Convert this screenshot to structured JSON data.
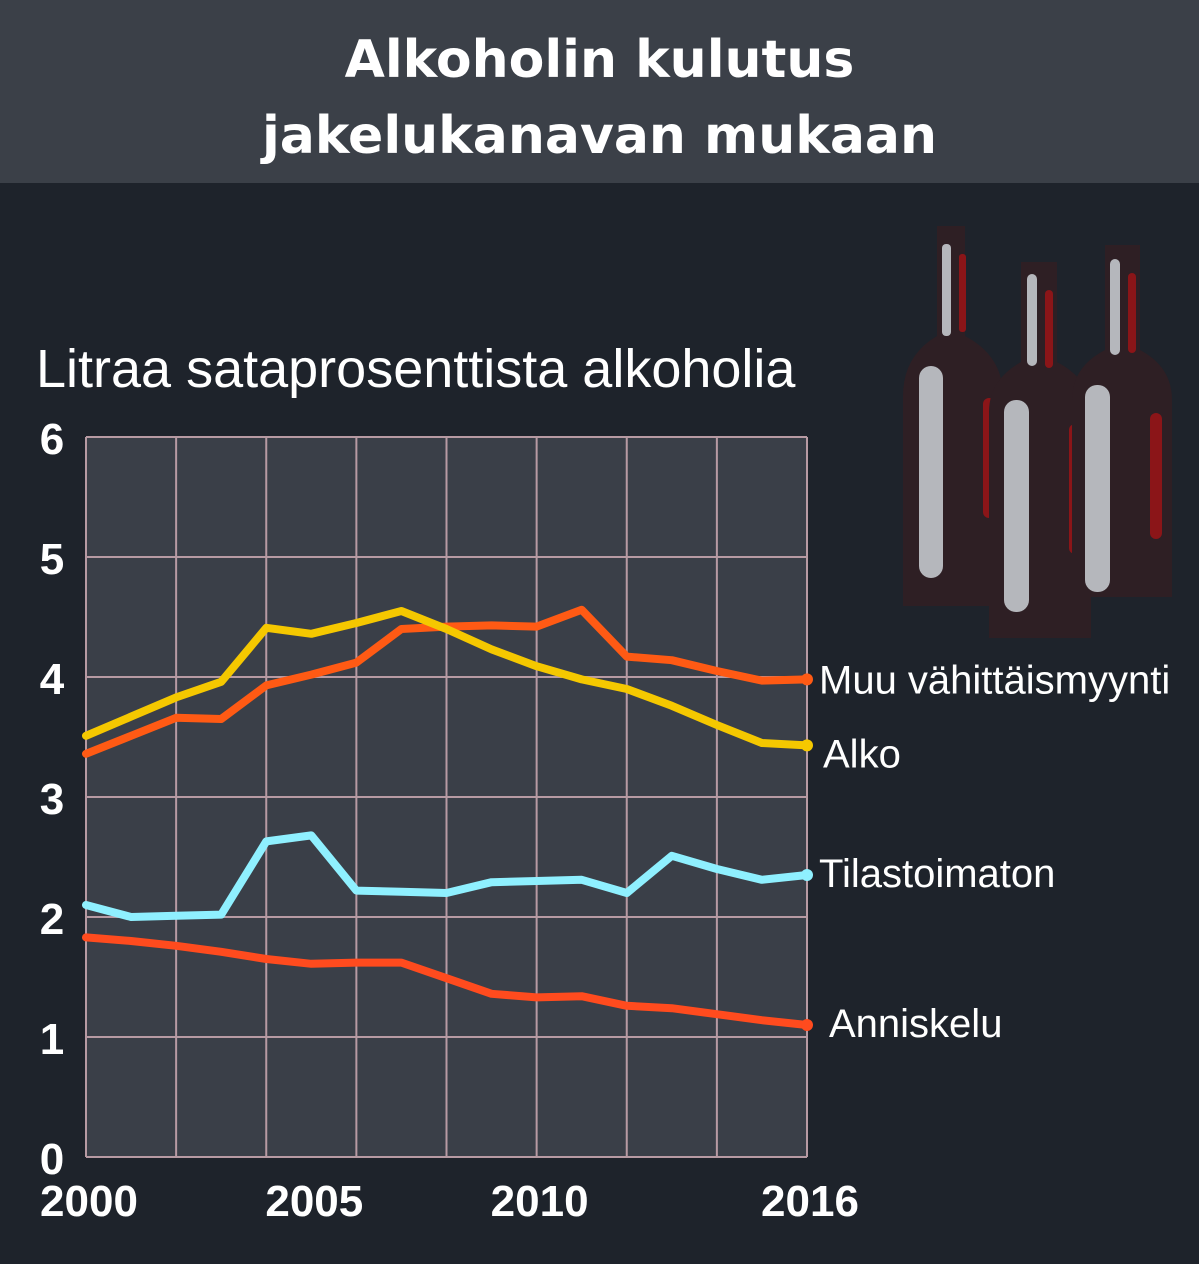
{
  "header": {
    "title_line1": "Alkoholin kulutus",
    "title_line2": "jakelukanavan mukaan"
  },
  "chart_data": {
    "type": "line",
    "title": "Alkoholin kulutus jakelukanavan mukaan",
    "ylabel": "Litraa sataprosenttista alkoholia",
    "xlabel": "",
    "ylim": [
      0,
      6
    ],
    "xlim": [
      2000,
      2016
    ],
    "yticks": [
      0,
      1,
      2,
      3,
      4,
      5,
      6
    ],
    "xtick_labels": [
      "2000",
      "2005",
      "2010",
      "2016"
    ],
    "xtick_values": [
      2000,
      2005,
      2010,
      2016
    ],
    "grid": true,
    "legend": "direct labels at line ends (right)",
    "x": [
      2000,
      2001,
      2002,
      2003,
      2004,
      2005,
      2006,
      2007,
      2008,
      2009,
      2010,
      2011,
      2012,
      2013,
      2014,
      2015,
      2016
    ],
    "series": [
      {
        "name": "Muu vähittäismyynti",
        "color": "#ff5a14",
        "values": [
          3.36,
          3.51,
          3.66,
          3.65,
          3.93,
          4.02,
          4.12,
          4.4,
          4.42,
          4.43,
          4.42,
          4.56,
          4.17,
          4.14,
          4.05,
          3.97,
          3.98
        ]
      },
      {
        "name": "Alko",
        "color": "#f5c800",
        "values": [
          3.51,
          3.67,
          3.83,
          3.96,
          4.41,
          4.36,
          4.45,
          4.55,
          4.4,
          4.23,
          4.09,
          3.98,
          3.9,
          3.76,
          3.6,
          3.45,
          3.43
        ]
      },
      {
        "name": "Tilastoimaton",
        "color": "#8ff0ff",
        "values": [
          2.1,
          2.0,
          2.01,
          2.02,
          2.63,
          2.68,
          2.22,
          2.21,
          2.2,
          2.29,
          2.3,
          2.31,
          2.2,
          2.51,
          2.4,
          2.31,
          2.35
        ]
      },
      {
        "name": "Anniskelu",
        "color": "#ff4b1e",
        "values": [
          1.83,
          1.8,
          1.76,
          1.71,
          1.65,
          1.61,
          1.62,
          1.62,
          1.49,
          1.36,
          1.33,
          1.34,
          1.26,
          1.24,
          1.19,
          1.14,
          1.1
        ]
      }
    ]
  },
  "illustration": {
    "icon": "wine-bottles-icon",
    "bottle_color": "#2e1f24",
    "label_color": "#b5b7bc",
    "accent_color": "#8b1518"
  }
}
